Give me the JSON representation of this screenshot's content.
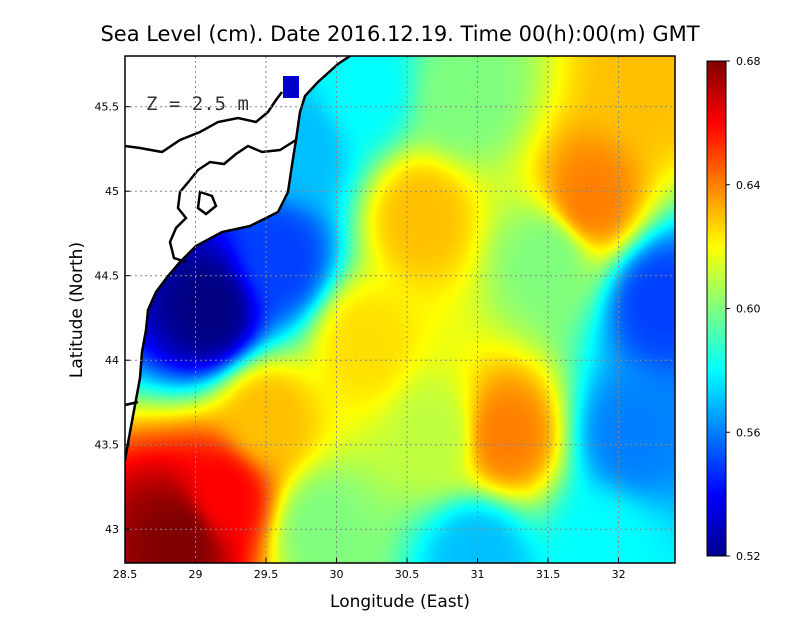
{
  "title": "Sea Level (cm). Date 2016.12.19. Time 00(h):00(m) GMT",
  "depth_label": "Z = 2.5 m",
  "chart_data": {
    "type": "heatmap",
    "title": "Sea Level (cm). Date 2016.12.19. Time 00(h):00(m) GMT",
    "xlabel": "Longitude (East)",
    "ylabel": "Latitude (North)",
    "xlim": [
      28.5,
      32.4
    ],
    "ylim": [
      42.8,
      45.8
    ],
    "x_ticks": [
      28.5,
      29,
      29.5,
      30,
      30.5,
      31,
      31.5,
      32
    ],
    "x_tick_labels": [
      "28.5",
      "29",
      "29.5",
      "30",
      "30.5",
      "31",
      "31.5",
      "32"
    ],
    "y_ticks": [
      43,
      43.5,
      44,
      44.5,
      45,
      45.5
    ],
    "y_tick_labels": [
      "43",
      "43.5",
      "44",
      "44.5",
      "45",
      "45.5"
    ],
    "grid": true,
    "colorbar": {
      "min": 0.52,
      "max": 0.68,
      "ticks": [
        0.52,
        0.56,
        0.6,
        0.64,
        0.68
      ],
      "tick_labels": [
        "0.52",
        "0.56",
        "0.60",
        "0.64",
        "0.68"
      ],
      "colormap": "jet"
    },
    "field_features": [
      {
        "lon": 28.9,
        "lat": 42.95,
        "value": 0.68
      },
      {
        "lon": 29.2,
        "lat": 43.2,
        "value": 0.66
      },
      {
        "lon": 29.5,
        "lat": 43.65,
        "value": 0.63
      },
      {
        "lon": 30.6,
        "lat": 44.85,
        "value": 0.63
      },
      {
        "lon": 31.8,
        "lat": 44.95,
        "value": 0.64
      },
      {
        "lon": 31.2,
        "lat": 43.55,
        "value": 0.64
      },
      {
        "lon": 30.2,
        "lat": 44.1,
        "value": 0.625
      },
      {
        "lon": 32.2,
        "lat": 45.65,
        "value": 0.63
      },
      {
        "lon": 30.7,
        "lat": 43.55,
        "value": 0.61
      },
      {
        "lon": 29.1,
        "lat": 44.3,
        "value": 0.52
      },
      {
        "lon": 29.6,
        "lat": 44.6,
        "value": 0.55
      },
      {
        "lon": 32.3,
        "lat": 44.35,
        "value": 0.55
      },
      {
        "lon": 32.1,
        "lat": 43.55,
        "value": 0.56
      },
      {
        "lon": 31.0,
        "lat": 42.85,
        "value": 0.57
      },
      {
        "lon": 29.75,
        "lat": 45.25,
        "value": 0.57
      },
      {
        "lon": 30.2,
        "lat": 45.6,
        "value": 0.58
      },
      {
        "lon": 30.9,
        "lat": 45.55,
        "value": 0.6
      },
      {
        "lon": 31.5,
        "lat": 44.6,
        "value": 0.6
      },
      {
        "lon": 29.9,
        "lat": 43.0,
        "value": 0.6
      },
      {
        "lon": 31.9,
        "lat": 42.9,
        "value": 0.58
      }
    ]
  }
}
